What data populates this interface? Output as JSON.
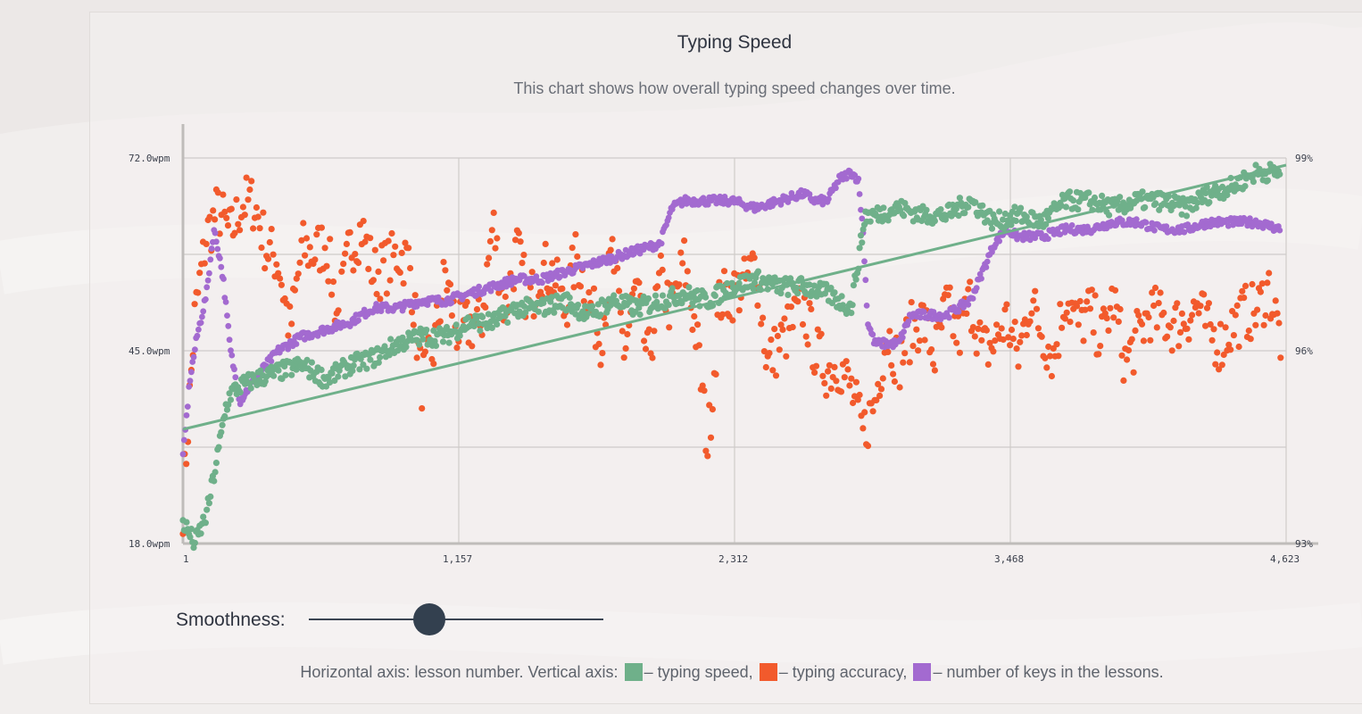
{
  "title": "Typing Speed",
  "subtitle": "This chart shows how overall typing speed changes over time.",
  "colors": {
    "speed": "#6fb08a",
    "accuracy": "#f25a2c",
    "keys": "#a36ad0",
    "grid": "#cfcbc9",
    "axis": "#bfbcba"
  },
  "smoothness": {
    "label": "Smoothness:",
    "value": 0.41
  },
  "legend": {
    "prefix": "Horizontal axis: lesson number. Vertical axis:",
    "speed": "– typing speed,",
    "accuracy": "– typing accuracy,",
    "keys": "– number of keys in the lessons."
  },
  "chart_data": {
    "type": "scatter",
    "x_ticks": [
      "1",
      "1,157",
      "2,312",
      "3,468",
      "4,623"
    ],
    "xlim": [
      1,
      4623
    ],
    "y_left_ticks": [
      "72.0wpm",
      "45.0wpm",
      "18.0wpm"
    ],
    "y_left_range": [
      18,
      72
    ],
    "y_right_ticks": [
      "99%",
      "96%",
      "93%"
    ],
    "y_right_range": [
      93,
      99
    ],
    "grid": true,
    "trend_line": {
      "series": "typing speed",
      "x": [
        1,
        4623
      ],
      "y": [
        34,
        71
      ]
    },
    "series": [
      {
        "name": "typing speed",
        "axis": "left",
        "x": [
          1,
          50,
          100,
          150,
          180,
          200,
          240,
          300,
          400,
          500,
          600,
          700,
          800,
          900,
          1000,
          1100,
          1200,
          1300,
          1400,
          1500,
          1600,
          1700,
          1800,
          1900,
          2000,
          2100,
          2200,
          2300,
          2400,
          2500,
          2600,
          2700,
          2800,
          2860,
          2900,
          3000,
          3100,
          3200,
          3300,
          3400,
          3500,
          3600,
          3700,
          3800,
          3900,
          4000,
          4100,
          4200,
          4300,
          4400,
          4500,
          4600
        ],
        "y": [
          21,
          18,
          22,
          31,
          37,
          39,
          40,
          41,
          42,
          43,
          41,
          43,
          44,
          46,
          47,
          47,
          49,
          49,
          51,
          51,
          52,
          50,
          52,
          51,
          52,
          53,
          52,
          54,
          55,
          54,
          54,
          53,
          51,
          64,
          64,
          65,
          64,
          64,
          66,
          63,
          64,
          63,
          66,
          66,
          65,
          66,
          66,
          65,
          67,
          68,
          70,
          70
        ]
      },
      {
        "name": "typing accuracy",
        "axis": "right",
        "x": [
          1,
          50,
          100,
          150,
          200,
          250,
          300,
          350,
          400,
          450,
          500,
          550,
          600,
          650,
          700,
          750,
          800,
          850,
          900,
          950,
          1000,
          1050,
          1100,
          1150,
          1200,
          1250,
          1300,
          1350,
          1400,
          1450,
          1500,
          1550,
          1600,
          1650,
          1700,
          1750,
          1800,
          1850,
          1900,
          1950,
          2000,
          2050,
          2100,
          2150,
          2200,
          2250,
          2300,
          2350,
          2400,
          2450,
          2500,
          2550,
          2600,
          2650,
          2700,
          2750,
          2800,
          2850,
          2900,
          2950,
          3000,
          3050,
          3100,
          3150,
          3200,
          3250,
          3300,
          3350,
          3400,
          3450,
          3500,
          3550,
          3600,
          3650,
          3700,
          3750,
          3800,
          3850,
          3900,
          3950,
          4000,
          4050,
          4100,
          4150,
          4200,
          4250,
          4300,
          4350,
          4400,
          4450,
          4500,
          4550,
          4600
        ],
        "y": [
          93.6,
          96.5,
          97.8,
          98.2,
          97.8,
          98.3,
          98.3,
          97.6,
          97.4,
          96.3,
          97.6,
          97.5,
          97.7,
          96.5,
          97.6,
          97.9,
          97.2,
          97.3,
          97.5,
          97.4,
          95.5,
          96.0,
          97.2,
          96.3,
          96.4,
          96.4,
          98.0,
          96.6,
          97.6,
          96.7,
          97.3,
          97.2,
          96.6,
          97.5,
          96.8,
          96.2,
          97.5,
          96.0,
          97.0,
          95.8,
          97.1,
          96.6,
          97.4,
          96.3,
          94.5,
          96.8,
          96.9,
          97.0,
          97.4,
          95.8,
          96.1,
          96.4,
          96.7,
          96.0,
          95.7,
          95.8,
          95.4,
          94.7,
          95.2,
          96.3,
          95.8,
          96.3,
          96.5,
          95.9,
          96.7,
          96.2,
          96.8,
          96.0,
          96.1,
          96.5,
          95.9,
          96.8,
          96.3,
          95.9,
          96.9,
          96.4,
          96.6,
          96.2,
          96.8,
          95.8,
          96.2,
          96.6,
          96.5,
          96.4,
          96.5,
          96.7,
          96.3,
          96.1,
          96.4,
          96.6,
          96.6,
          97.0,
          96.2
        ]
      },
      {
        "name": "number of keys in the lessons",
        "axis": "left",
        "x": [
          1,
          30,
          60,
          100,
          130,
          150,
          170,
          200,
          240,
          300,
          350,
          400,
          500,
          600,
          700,
          800,
          900,
          1000,
          1100,
          1200,
          1300,
          1400,
          1500,
          1600,
          1700,
          1800,
          1900,
          2000,
          2050,
          2100,
          2200,
          2300,
          2400,
          2500,
          2600,
          2650,
          2700,
          2750,
          2800,
          2830,
          2850,
          2870,
          2900,
          3000,
          3050,
          3100,
          3200,
          3300,
          3350,
          3400,
          3450,
          3500,
          3600,
          3700,
          3800,
          3900,
          4000,
          4100,
          4200,
          4300,
          4400,
          4500,
          4600
        ],
        "y": [
          30,
          41,
          47,
          53,
          62,
          59,
          55,
          45,
          38,
          41,
          43,
          45,
          47,
          48,
          49,
          51,
          51,
          52,
          52,
          53,
          54,
          55,
          55,
          56,
          57,
          58,
          59,
          60,
          65,
          66,
          66,
          66,
          65,
          66,
          67,
          66,
          66,
          69,
          70,
          69,
          62,
          49,
          46,
          46,
          50,
          50,
          50,
          52,
          56,
          60,
          62,
          61,
          61,
          62,
          62,
          63,
          63,
          62,
          62,
          63,
          63,
          63,
          62
        ]
      }
    ]
  }
}
